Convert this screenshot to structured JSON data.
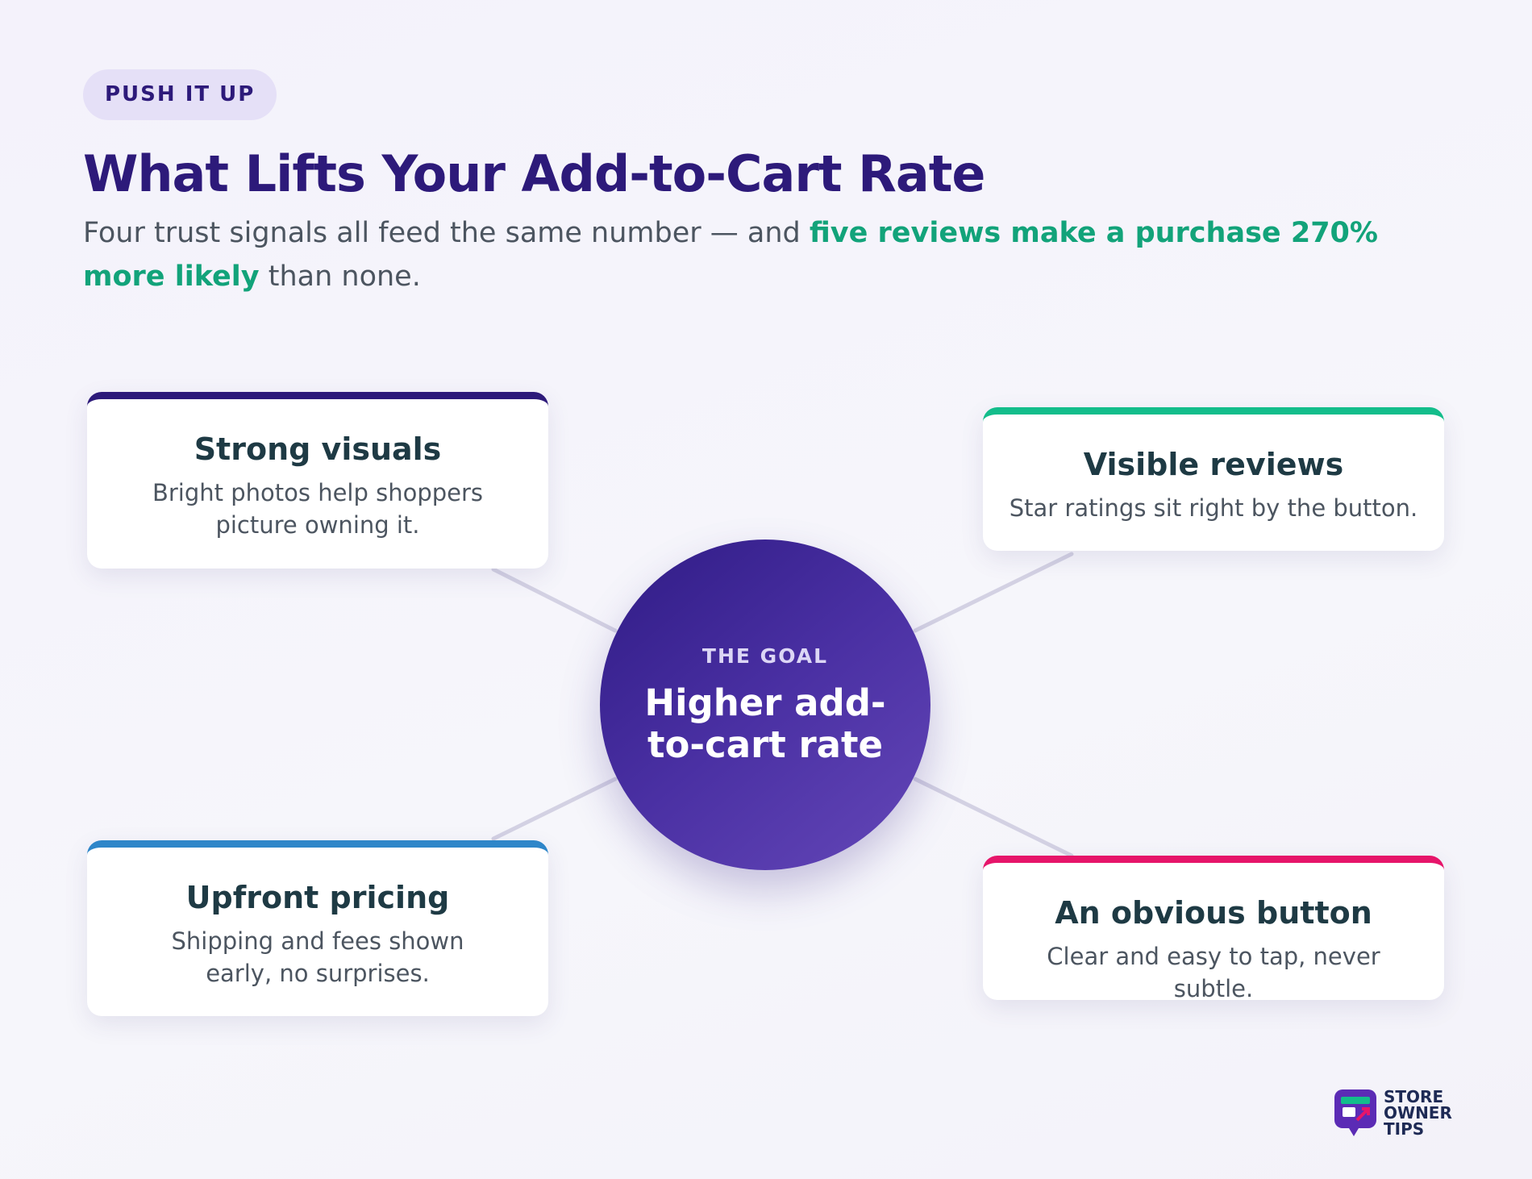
{
  "header": {
    "badge": "PUSH IT UP",
    "title": "What Lifts Your Add-to-Cart Rate",
    "subtitle": [
      "Four trust signals all feed the same number — and ",
      "five reviews make a purchase 270% more likely",
      " than none."
    ]
  },
  "cards": [
    {
      "title": "Strong visuals",
      "description": "Bright photos help shoppers picture owning it."
    },
    {
      "title": "Visible reviews",
      "description": "Star ratings sit right by the button."
    },
    {
      "title": "Upfront pricing",
      "description": "Shipping and fees shown early, no surprises."
    },
    {
      "title": "An obvious button",
      "description": "Clear and easy to tap, never subtle."
    }
  ],
  "center": {
    "label": "THE GOAL",
    "text": "Higher add-to-cart rate"
  },
  "logo": {
    "lines": [
      "STORE",
      "OWNER",
      "TIPS"
    ]
  }
}
